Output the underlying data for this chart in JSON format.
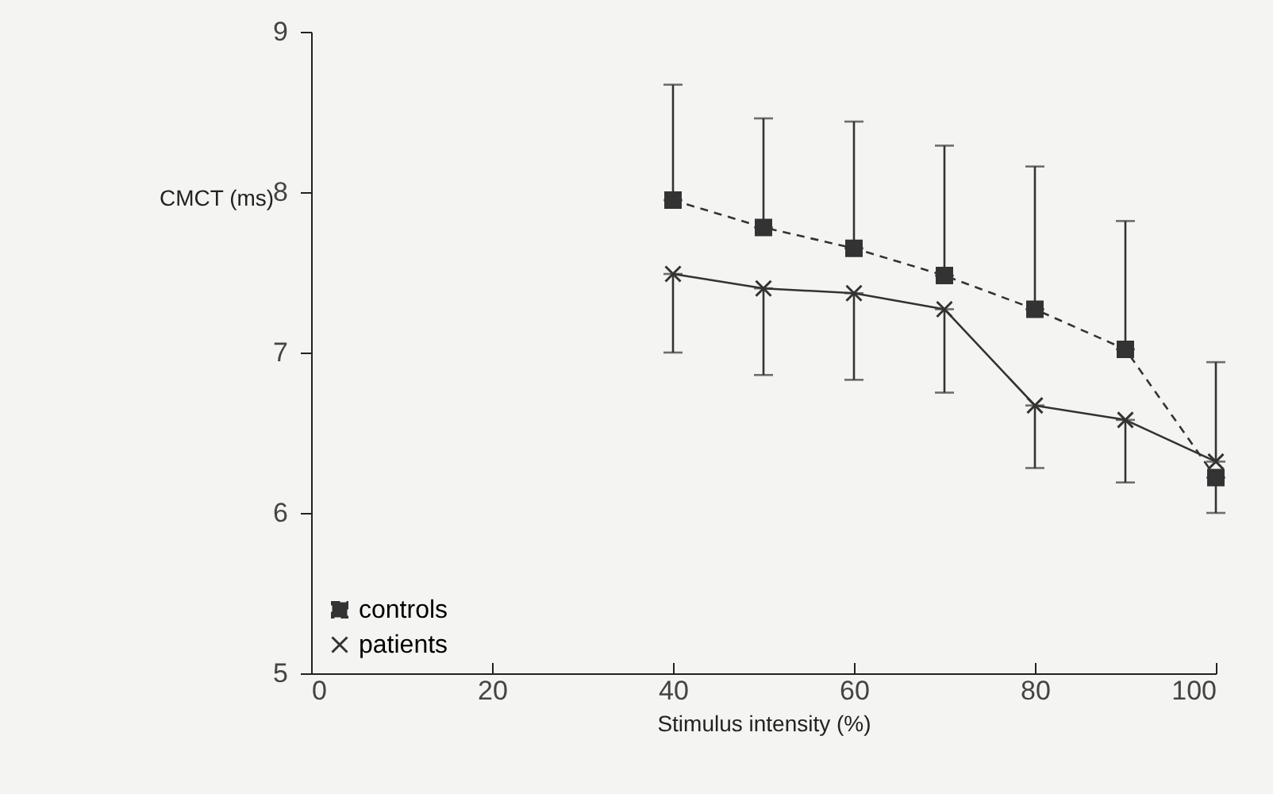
{
  "chart_data": {
    "type": "line",
    "xlabel": "Stimulus intensity (%)",
    "ylabel": "CMCT (ms)",
    "x": [
      40,
      50,
      60,
      70,
      80,
      90,
      100
    ],
    "series": [
      {
        "name": "controls",
        "color": "#333333",
        "marker": "square",
        "line_style": "dashed",
        "values": [
          7.95,
          7.78,
          7.65,
          7.48,
          7.27,
          7.02,
          6.22
        ],
        "errors": [
          [
            7.95,
            8.67
          ],
          [
            7.78,
            8.46
          ],
          [
            7.65,
            8.44
          ],
          [
            7.48,
            8.29
          ],
          [
            7.27,
            8.16
          ],
          [
            7.02,
            7.82
          ],
          [
            6.0,
            6.22
          ]
        ]
      },
      {
        "name": "patients",
        "color": "#333333",
        "marker": "cross",
        "line_style": "solid",
        "values": [
          7.49,
          7.4,
          7.37,
          7.27,
          6.67,
          6.58,
          6.32
        ],
        "errors": [
          [
            7.0,
            7.49
          ],
          [
            6.86,
            7.4
          ],
          [
            6.83,
            7.37
          ],
          [
            6.75,
            7.27
          ],
          [
            6.28,
            6.67
          ],
          [
            6.19,
            6.58
          ],
          [
            6.32,
            6.94
          ]
        ]
      }
    ],
    "xlim": [
      0,
      100
    ],
    "xticks": [
      0,
      20,
      40,
      60,
      80,
      100
    ],
    "ylim": [
      5,
      9
    ],
    "yticks": [
      5,
      6,
      7,
      8,
      9
    ],
    "grid": false,
    "legend": "bottom left"
  }
}
